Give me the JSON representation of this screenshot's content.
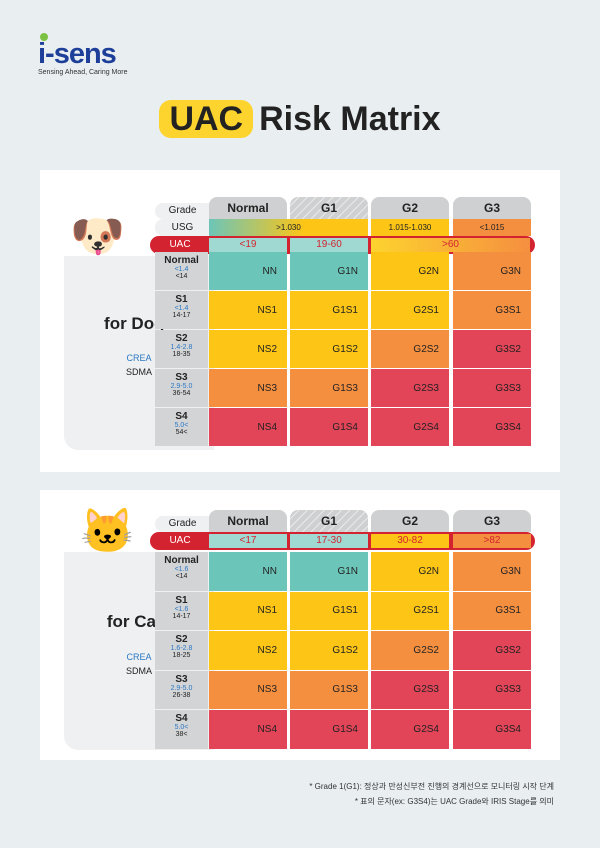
{
  "logo": {
    "name": "i-sens",
    "tagline": "Sensing Ahead, Caring More"
  },
  "title": {
    "highlight": "UAC",
    "rest": "Risk Matrix"
  },
  "colors": {
    "teal": "#6cc5b9",
    "yellow": "#fdc516",
    "orange": "#f58f40",
    "red": "#e24558",
    "uac_red": "#d32330"
  },
  "grades": [
    "Normal",
    "G1",
    "G2",
    "G3"
  ],
  "dogs": {
    "pet_icon": "dog-icon",
    "title": "for Dogs",
    "crea_label": "CREA",
    "sdma_label": "SDMA",
    "grade_label": "Grade",
    "usg": {
      "label": "USG",
      "values": [
        ">1.030",
        "1.015-1.030",
        "<1.015"
      ]
    },
    "uac": {
      "label": "UAC",
      "values": [
        "<19",
        "19-60",
        ">60"
      ]
    },
    "rows": [
      {
        "stage": "Normal",
        "crea": "<1.4",
        "sdma": "<14",
        "cells": [
          "NN",
          "G1N",
          "G2N",
          "G3N"
        ],
        "colors": [
          "teal",
          "teal",
          "yellow",
          "orange"
        ]
      },
      {
        "stage": "S1",
        "crea": "<1.4",
        "sdma": "14-17",
        "cells": [
          "NS1",
          "G1S1",
          "G2S1",
          "G3S1"
        ],
        "colors": [
          "yellow",
          "yellow",
          "yellow",
          "orange"
        ]
      },
      {
        "stage": "S2",
        "crea": "1.4-2.8",
        "sdma": "18-35",
        "cells": [
          "NS2",
          "G1S2",
          "G2S2",
          "G3S2"
        ],
        "colors": [
          "yellow",
          "yellow",
          "orange",
          "red"
        ]
      },
      {
        "stage": "S3",
        "crea": "2.9-5.0",
        "sdma": "36-54",
        "cells": [
          "NS3",
          "G1S3",
          "G2S3",
          "G3S3"
        ],
        "colors": [
          "orange",
          "orange",
          "red",
          "red"
        ]
      },
      {
        "stage": "S4",
        "crea": "5.0<",
        "sdma": "54<",
        "cells": [
          "NS4",
          "G1S4",
          "G2S4",
          "G3S4"
        ],
        "colors": [
          "red",
          "red",
          "red",
          "red"
        ]
      }
    ]
  },
  "cats": {
    "pet_icon": "cat-icon",
    "title": "for Cats",
    "crea_label": "CREA",
    "sdma_label": "SDMA",
    "grade_label": "Grade",
    "uac": {
      "label": "UAC",
      "values": [
        "<17",
        "17-30",
        "30-82",
        ">82"
      ]
    },
    "rows": [
      {
        "stage": "Normal",
        "crea": "<1.6",
        "sdma": "<14",
        "cells": [
          "NN",
          "G1N",
          "G2N",
          "G3N"
        ],
        "colors": [
          "teal",
          "teal",
          "yellow",
          "orange"
        ]
      },
      {
        "stage": "S1",
        "crea": "<1.6",
        "sdma": "14-17",
        "cells": [
          "NS1",
          "G1S1",
          "G2S1",
          "G3S1"
        ],
        "colors": [
          "yellow",
          "yellow",
          "yellow",
          "orange"
        ]
      },
      {
        "stage": "S2",
        "crea": "1.6-2.8",
        "sdma": "18-25",
        "cells": [
          "NS2",
          "G1S2",
          "G2S2",
          "G3S2"
        ],
        "colors": [
          "yellow",
          "yellow",
          "orange",
          "red"
        ]
      },
      {
        "stage": "S3",
        "crea": "2.9-5.0",
        "sdma": "26-38",
        "cells": [
          "NS3",
          "G1S3",
          "G2S3",
          "G3S3"
        ],
        "colors": [
          "orange",
          "orange",
          "red",
          "red"
        ]
      },
      {
        "stage": "S4",
        "crea": "5.0<",
        "sdma": "38<",
        "cells": [
          "NS4",
          "G1S4",
          "G2S4",
          "G3S4"
        ],
        "colors": [
          "red",
          "red",
          "red",
          "red"
        ]
      }
    ]
  },
  "notes": [
    "* Grade 1(G1): 정상과 만성신부전 진행의 경계선으로 모니터링 시작 단계",
    "* 표의 문자(ex: G3S4)는 UAC Grade와 IRIS Stage를 의미"
  ]
}
